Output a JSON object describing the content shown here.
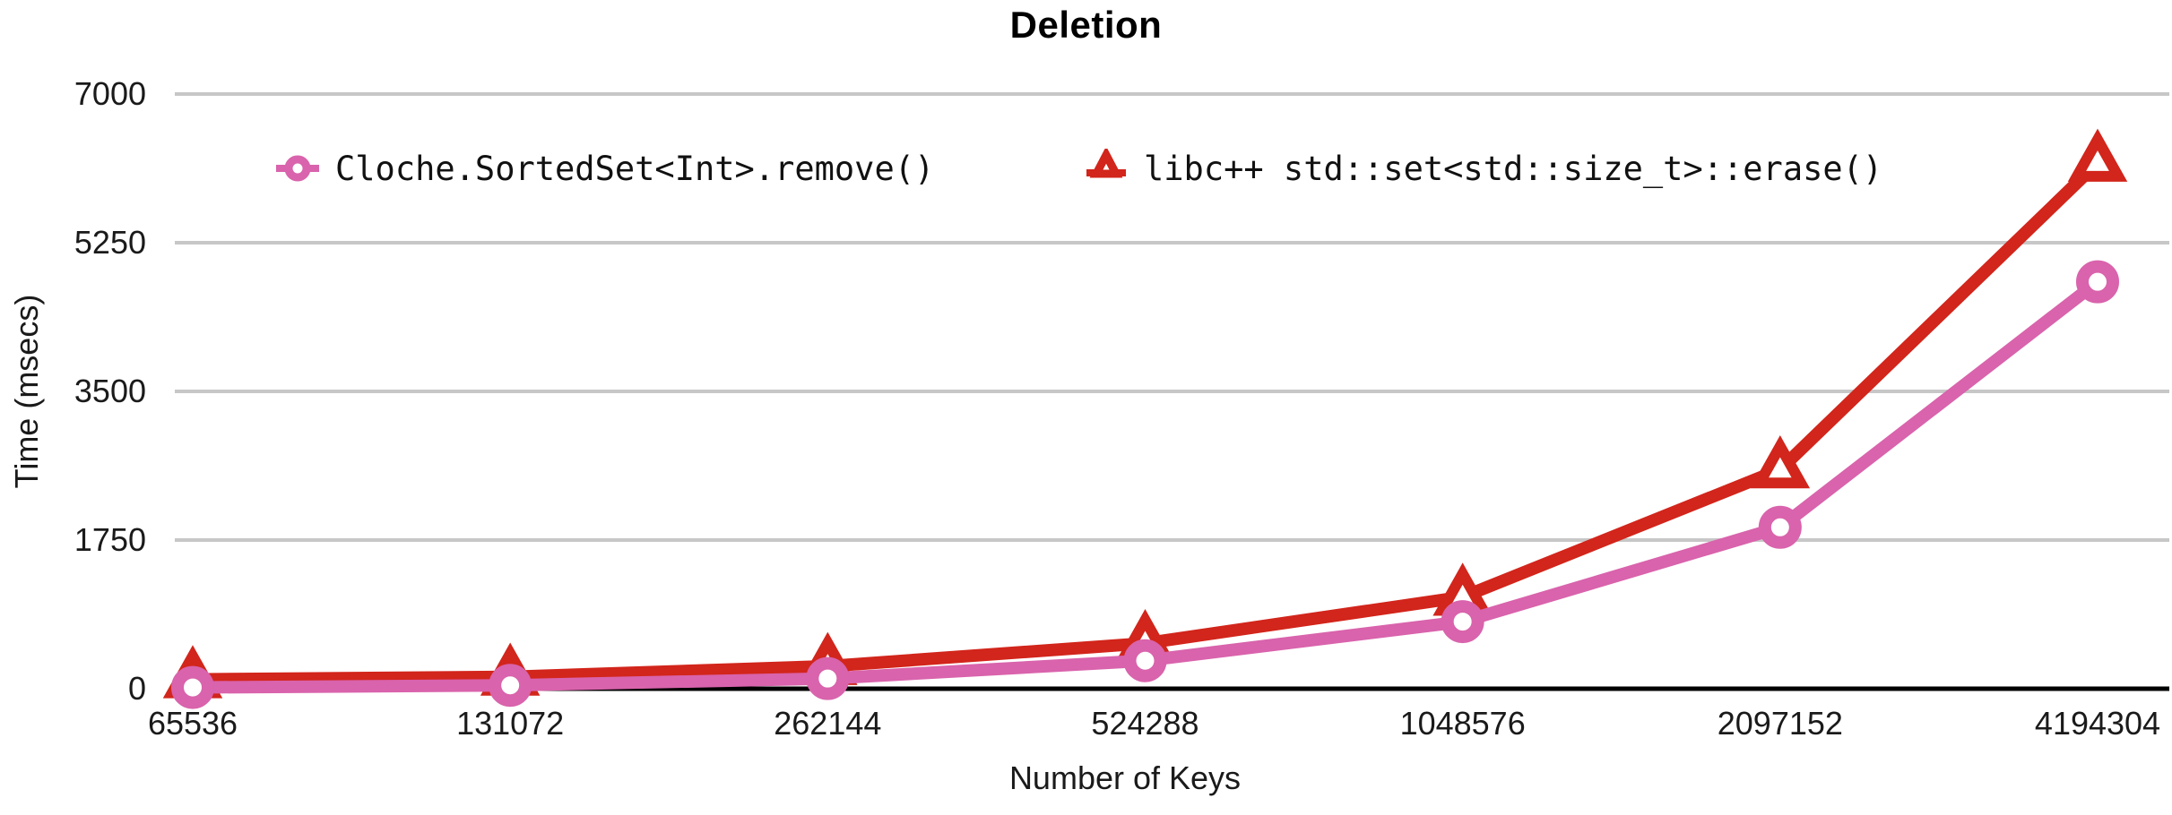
{
  "title": "Deletion",
  "x_axis_title": "Number of Keys",
  "y_axis_title": "Time (msecs)",
  "colors": {
    "pink_series": "#D963AC",
    "red_series": "#D2251B",
    "gridline": "#C7C7C7",
    "axis": "#000000"
  },
  "chart_data": {
    "type": "line",
    "title": "Deletion",
    "xlabel": "Number of Keys",
    "ylabel": "Time (msecs)",
    "categories": [
      "65536",
      "131072",
      "262144",
      "524288",
      "1048576",
      "2097152",
      "4194304"
    ],
    "yticks": [
      0,
      1750,
      3500,
      5250,
      7000
    ],
    "ylim": [
      0,
      7000
    ],
    "grid": true,
    "legend_position": "top",
    "series": [
      {
        "name": "Cloche.SortedSet<Int>.remove()",
        "marker": "ring",
        "color": "#D963AC",
        "values": [
          15,
          40,
          120,
          330,
          790,
          1900,
          4790
        ]
      },
      {
        "name": "libc++ std::set<std::size_t>::erase()",
        "marker": "triangle",
        "color": "#D2251B",
        "values": [
          110,
          140,
          265,
          535,
          1080,
          2580,
          6190
        ]
      }
    ]
  }
}
